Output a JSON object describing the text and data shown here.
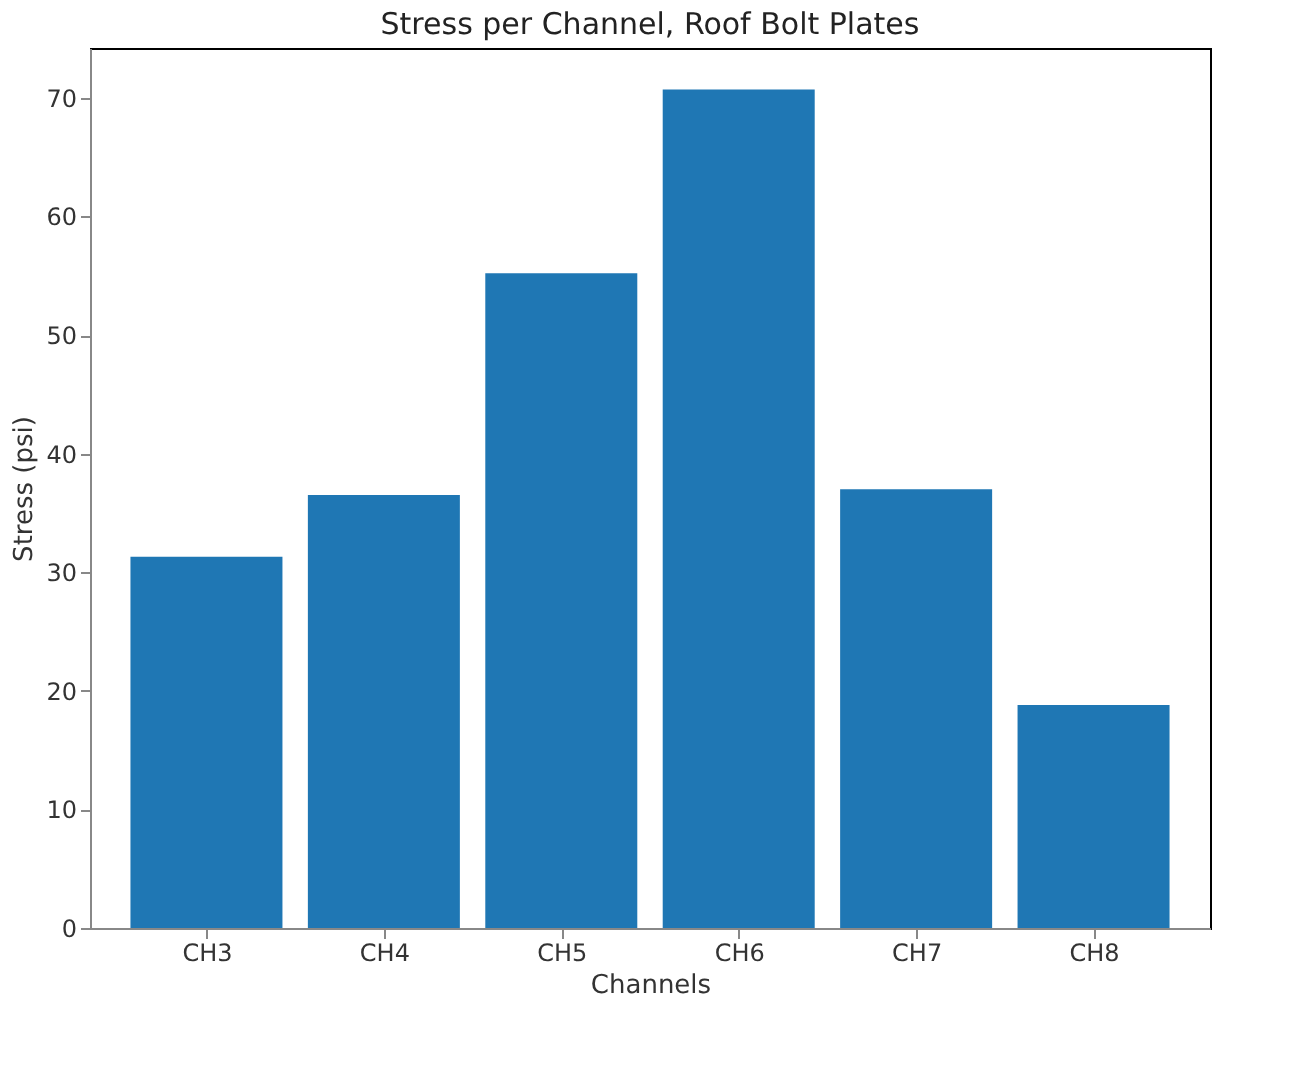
{
  "chart_data": {
    "type": "bar",
    "title": "Stress per Channel, Roof Bolt Plates",
    "xlabel": "Channels",
    "ylabel": "Stress (psi)",
    "categories": [
      "CH3",
      "CH4",
      "CH5",
      "CH6",
      "CH7",
      "CH8"
    ],
    "values": [
      31.3,
      36.5,
      55.2,
      70.7,
      37.0,
      18.8
    ],
    "color": "#1f77b4",
    "ylim": [
      0,
      74.2
    ],
    "yticks": [
      0,
      10,
      20,
      30,
      40,
      50,
      60,
      70
    ],
    "grid": false
  }
}
